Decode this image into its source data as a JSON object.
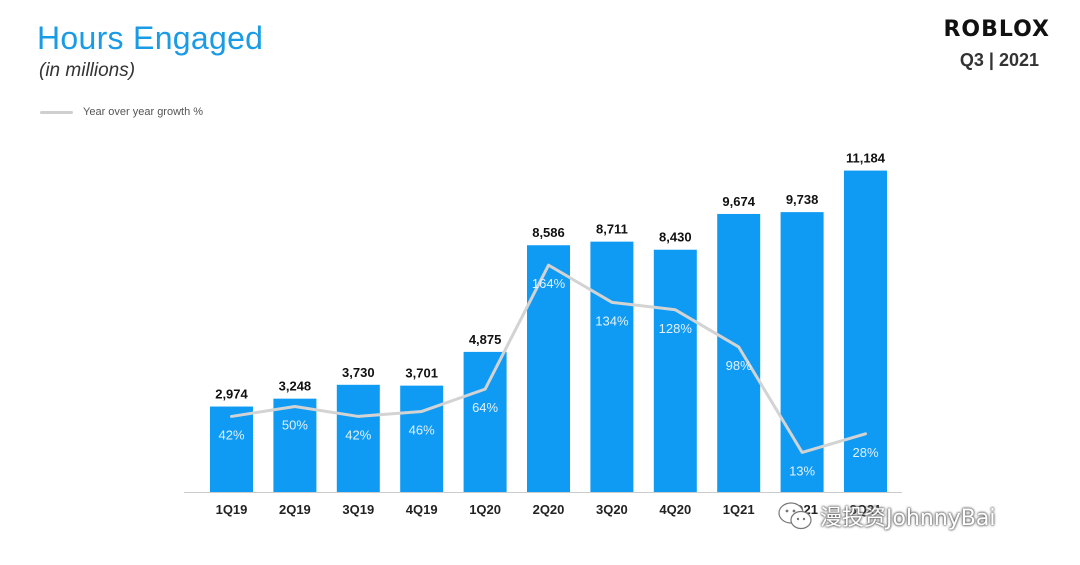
{
  "header": {
    "title": "Hours Engaged",
    "subtitle": "(in millions)",
    "brand": "ROBLOX",
    "period": "Q3 | 2021"
  },
  "watermark": {
    "text": "漫投资JohnnyBai",
    "icon": "wechat-icon"
  },
  "colors": {
    "bar": "#0f9bf3",
    "line": "#d3d3d3",
    "title": "#1a9be6"
  },
  "chart_data": {
    "type": "bar",
    "categories": [
      "1Q19",
      "2Q19",
      "3Q19",
      "4Q19",
      "1Q20",
      "2Q20",
      "3Q20",
      "4Q20",
      "1Q21",
      "2Q21",
      "3Q21"
    ],
    "series": [
      {
        "type": "bar",
        "values": [
          2974,
          3248,
          3730,
          3701,
          4875,
          8586,
          8711,
          8430,
          9674,
          9738,
          11184
        ],
        "labels": [
          "2,974",
          "3,248",
          "3,730",
          "3,701",
          "4,875",
          "8,586",
          "8,711",
          "8,430",
          "9,674",
          "9,738",
          "11,184"
        ]
      },
      {
        "name": "Year over year growth %",
        "type": "line",
        "values": [
          42,
          50,
          42,
          46,
          64,
          164,
          134,
          128,
          98,
          13,
          28
        ],
        "labels": [
          "42%",
          "50%",
          "42%",
          "46%",
          "64%",
          "164%",
          "134%",
          "128%",
          "98%",
          "13%",
          "28%"
        ]
      }
    ],
    "title": "Hours Engaged",
    "subtitle": "(in millions)",
    "legend": "top-left",
    "grid": false
  }
}
